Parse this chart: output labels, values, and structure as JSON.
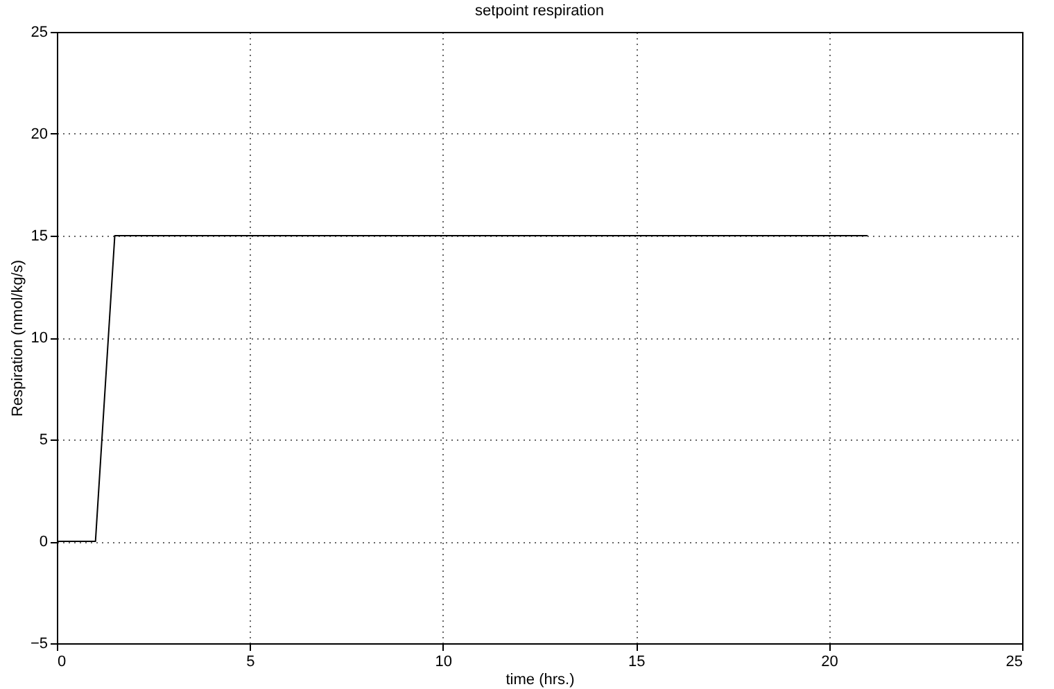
{
  "chart_data": {
    "type": "line",
    "title": "setpoint respiration",
    "xlabel": "time (hrs.)",
    "ylabel": "Respiration (nmol/kg/s)",
    "x": [
      0,
      1,
      1.5,
      21
    ],
    "series": [
      {
        "color": "#000000",
        "values": [
          0,
          0,
          15,
          15
        ]
      }
    ],
    "xlim": [
      0,
      25
    ],
    "xticks": [
      0,
      5,
      10,
      15,
      20,
      25
    ],
    "ylim": [
      -5,
      25
    ],
    "yticks": [
      -5,
      0,
      5,
      10,
      15,
      20,
      25
    ],
    "grid": true,
    "line_style": "solid"
  }
}
